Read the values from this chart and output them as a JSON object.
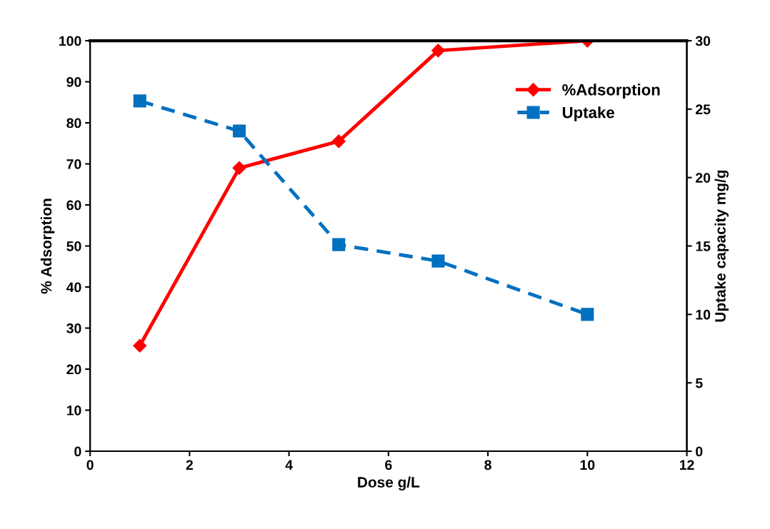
{
  "chart_data": {
    "type": "line",
    "xlabel": "Dose g/L",
    "ylabel": "% Adsorption",
    "y2label": "Uptake capacity mg/g",
    "x": [
      1,
      3,
      5,
      7,
      10
    ],
    "series": [
      {
        "name": "%Adsorption",
        "color": "#ff0000",
        "values": [
          25.7,
          69.0,
          75.5,
          97.6,
          100
        ],
        "marker": "diamond",
        "line_style": "solid"
      },
      {
        "name": "Uptake",
        "color": "#0070c0",
        "values": [
          25.6,
          23.4,
          15.1,
          13.9,
          10.0
        ],
        "marker": "square",
        "line_style": "dashed",
        "axis": "y2"
      }
    ],
    "xlim": [
      0,
      12
    ],
    "xticks": [
      0,
      2,
      4,
      6,
      8,
      10,
      12
    ],
    "ylim": [
      0,
      100
    ],
    "yticks": [
      0,
      10,
      20,
      30,
      40,
      50,
      60,
      70,
      80,
      90,
      100
    ],
    "y2lim": [
      0,
      30
    ],
    "y2ticks": [
      0,
      5,
      10,
      15,
      20,
      25,
      30
    ],
    "grid": false,
    "legend": "top right"
  }
}
